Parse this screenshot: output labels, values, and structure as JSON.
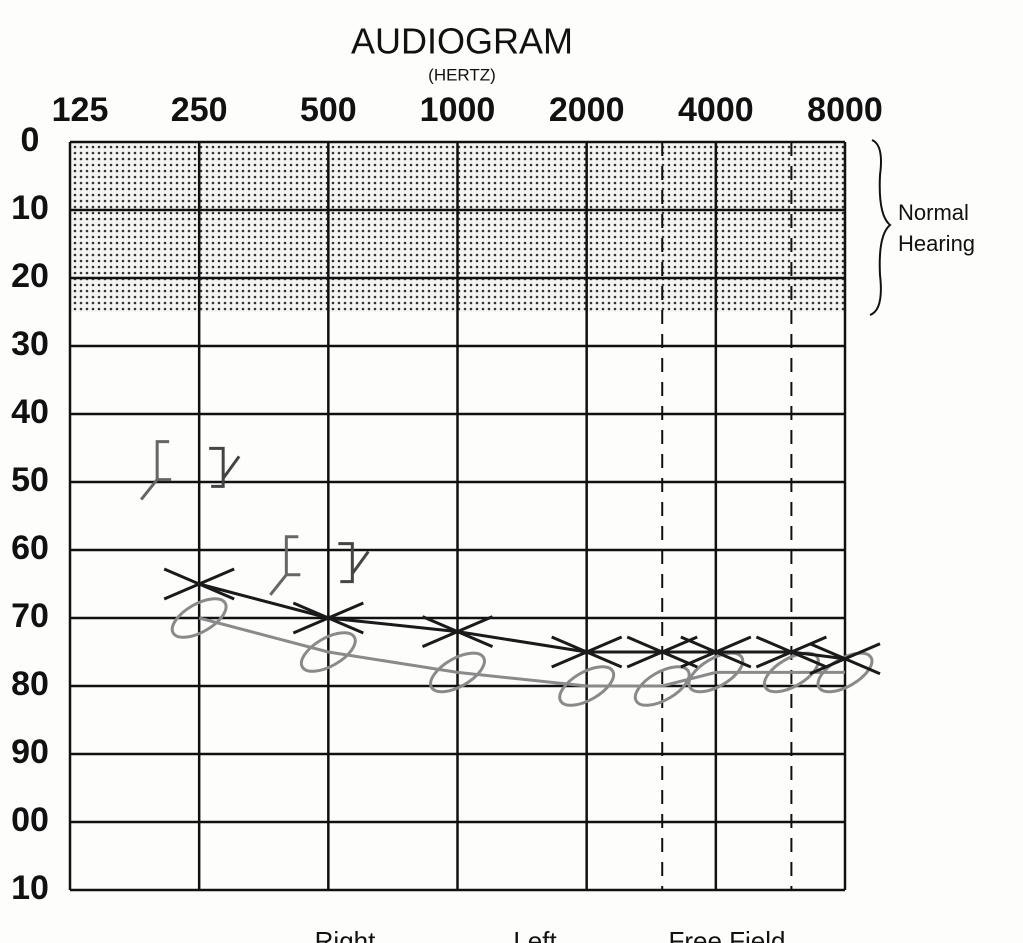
{
  "chart_data": {
    "type": "line",
    "title": "AUDIOGRAM",
    "subtitle": "(HERTZ)",
    "xscale": "log",
    "xlim": [
      125,
      8000
    ],
    "xticks": [
      125,
      250,
      500,
      1000,
      2000,
      4000,
      8000
    ],
    "xticks_dashed": [
      3000,
      6000
    ],
    "ylim": [
      0,
      110
    ],
    "yinverted": true,
    "yticks": [
      0,
      10,
      20,
      30,
      40,
      50,
      60,
      70,
      80,
      90,
      {
        "value": 100,
        "label": "00"
      },
      {
        "value": 110,
        "label": "10"
      }
    ],
    "grid": true,
    "shaded_range": [
      0,
      25
    ],
    "shaded_label": [
      "Normal",
      "Hearing"
    ],
    "series": [
      {
        "name": "Right",
        "marker": "o",
        "color": "#8a8a8a",
        "x": [
          250,
          500,
          1000,
          2000,
          3000,
          4000,
          6000,
          8000
        ],
        "values": [
          70,
          75,
          78,
          80,
          80,
          78,
          78,
          78
        ]
      },
      {
        "name": "Left",
        "marker": "x",
        "color": "#1a1a1a",
        "x": [
          250,
          500,
          1000,
          2000,
          3000,
          4000,
          6000,
          8000
        ],
        "values": [
          65,
          70,
          72,
          75,
          75,
          75,
          75,
          76
        ]
      },
      {
        "marker": "[",
        "color": "#666666",
        "x": [
          250,
          500
        ],
        "values": [
          47,
          61
        ]
      },
      {
        "marker": "]",
        "color": "#444444",
        "x": [
          250,
          500
        ],
        "values": [
          48,
          62
        ]
      }
    ],
    "legend": "bottom",
    "extra_legend_label": "Free Field"
  }
}
